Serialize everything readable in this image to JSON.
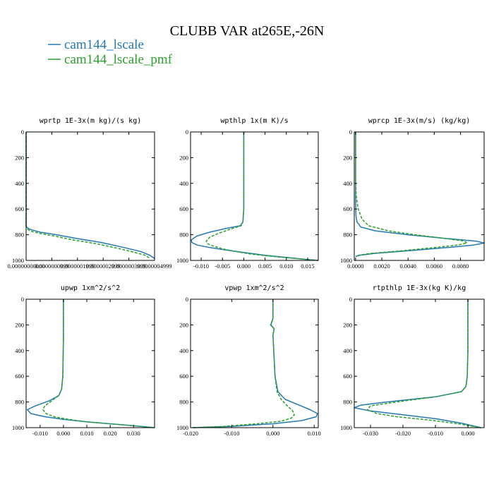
{
  "title": "CLUBB VAR at265E,-26N",
  "legend": [
    {
      "label": "cam144_lscale",
      "color": "#2478b4",
      "dash": false
    },
    {
      "label": "cam144_lscale_pmf",
      "color": "#2ca02c",
      "dash": true
    }
  ],
  "chart_data": [
    {
      "type": "line",
      "title": "wprtp  1E-3x(m kg)/(s kg)",
      "ylim": [
        1000,
        0
      ],
      "xlim": [
        0,
        5.5e-09
      ],
      "yticks": [
        0,
        200,
        400,
        600,
        800,
        1000
      ],
      "xticks": [
        {
          "v": 0,
          "label": "0.00000000000"
        },
        {
          "v": 1.11e-09,
          "label": "0.0000000999"
        },
        {
          "v": 2.22e-09,
          "label": "0.0000001999"
        },
        {
          "v": 3.33e-09,
          "label": "0.0000002999"
        },
        {
          "v": 4.44e-09,
          "label": "0.0000003999"
        },
        {
          "v": 5.55e-09,
          "label": "0.0000004999"
        }
      ],
      "xtick_positions": [
        0,
        1.1e-09,
        2.2e-09,
        3.3e-09,
        4.4e-09,
        5.5e-09
      ],
      "series": [
        {
          "name": "cam144_lscale",
          "x": [
            0,
            0,
            0,
            0,
            0,
            0,
            3e-11,
            8e-11,
            2e-10,
            6e-10,
            1.3e-09,
            2.2e-09,
            3.2e-09,
            4.2e-09,
            4.9e-09,
            5.3e-09,
            5.5e-09
          ],
          "y": [
            0,
            200,
            400,
            600,
            700,
            730,
            740,
            750,
            760,
            780,
            800,
            830,
            860,
            900,
            930,
            960,
            985
          ]
        },
        {
          "name": "cam144_lscale_pmf",
          "x": [
            0,
            0,
            0,
            0,
            0,
            0,
            3e-11,
            8e-11,
            2e-10,
            6e-10,
            1.2e-09,
            2e-09,
            3e-09,
            3.9e-09,
            4.6e-09,
            5.1e-09,
            5.3e-09
          ],
          "y": [
            0,
            200,
            400,
            600,
            700,
            735,
            748,
            760,
            772,
            790,
            810,
            840,
            870,
            905,
            935,
            960,
            985
          ]
        }
      ]
    },
    {
      "type": "line",
      "title": "wpthlp  1x(m K)/s",
      "ylim": [
        1000,
        0
      ],
      "xlim": [
        -0.0125,
        0.0175
      ],
      "yticks": [
        0,
        200,
        400,
        600,
        800,
        1000
      ],
      "xticks": [
        {
          "v": -0.01,
          "label": "-0.010"
        },
        {
          "v": -0.005,
          "label": "-0.005"
        },
        {
          "v": 0,
          "label": "0.000"
        },
        {
          "v": 0.005,
          "label": "0.005"
        },
        {
          "v": 0.01,
          "label": "0.010"
        },
        {
          "v": 0.015,
          "label": "0.015"
        }
      ],
      "series": [
        {
          "name": "cam144_lscale",
          "x": [
            0,
            0,
            0,
            0,
            -0.0002,
            -0.0008,
            -0.004,
            -0.008,
            -0.011,
            -0.0123,
            -0.0122,
            -0.011,
            -0.008,
            -0.004,
            0.0005,
            0.005,
            0.011,
            0.0155,
            0.0175
          ],
          "y": [
            0,
            200,
            400,
            600,
            700,
            730,
            750,
            780,
            810,
            840,
            860,
            880,
            900,
            920,
            940,
            960,
            980,
            995,
            1000
          ]
        },
        {
          "name": "cam144_lscale_pmf",
          "x": [
            0,
            0,
            0,
            0,
            -0.0002,
            -0.0006,
            -0.003,
            -0.006,
            -0.008,
            -0.0088,
            -0.0085,
            -0.007,
            -0.005,
            -0.002,
            0.0015,
            0.0055,
            0.0105,
            0.015,
            0.0175
          ],
          "y": [
            0,
            200,
            400,
            600,
            700,
            730,
            755,
            790,
            820,
            850,
            870,
            890,
            910,
            930,
            950,
            965,
            980,
            993,
            1000
          ]
        }
      ]
    },
    {
      "type": "line",
      "title": "wprcp  1E-3x(m/s) (kg/kg)",
      "ylim": [
        1000,
        0
      ],
      "xlim": [
        -0.0001,
        0.0098
      ],
      "yticks": [
        0,
        200,
        400,
        600,
        800,
        1000
      ],
      "xticks": [
        {
          "v": 0,
          "label": "0.0000"
        },
        {
          "v": 0.002,
          "label": "0.0020"
        },
        {
          "v": 0.004,
          "label": "0.0040"
        },
        {
          "v": 0.006,
          "label": "0.0060"
        },
        {
          "v": 0.008,
          "label": "0.0080"
        }
      ],
      "series": [
        {
          "name": "cam144_lscale",
          "x": [
            0,
            0,
            0,
            0,
            3e-05,
            0.0001,
            0.0004,
            0.0015,
            0.004,
            0.007,
            0.0092,
            0.0098,
            0.009,
            0.007,
            0.004,
            0.0015,
            0.0003,
            0
          ],
          "y": [
            0,
            200,
            400,
            550,
            650,
            700,
            740,
            770,
            800,
            830,
            850,
            865,
            880,
            900,
            925,
            945,
            960,
            970
          ]
        },
        {
          "name": "cam144_lscale_pmf",
          "x": [
            0,
            0,
            0,
            5e-05,
            0.0002,
            0.0005,
            0.001,
            0.0025,
            0.0045,
            0.0065,
            0.0083,
            0.0085,
            0.0078,
            0.006,
            0.0035,
            0.0012,
            0.0002,
            0
          ],
          "y": [
            0,
            200,
            400,
            500,
            600,
            680,
            730,
            770,
            800,
            825,
            850,
            865,
            880,
            900,
            925,
            945,
            960,
            970
          ]
        }
      ]
    },
    {
      "type": "line",
      "title": "upwp  1xm^2/s^2",
      "ylim": [
        1000,
        0
      ],
      "xlim": [
        -0.016,
        0.039
      ],
      "yticks": [
        0,
        200,
        400,
        600,
        800,
        1000
      ],
      "xticks": [
        {
          "v": -0.01,
          "label": "-0.010"
        },
        {
          "v": 0,
          "label": "0.000"
        },
        {
          "v": 0.01,
          "label": "0.010"
        },
        {
          "v": 0.02,
          "label": "0.020"
        },
        {
          "v": 0.03,
          "label": "0.030"
        }
      ],
      "series": [
        {
          "name": "cam144_lscale",
          "x": [
            0,
            0,
            -0.0003,
            -0.0008,
            -0.002,
            -0.006,
            -0.012,
            -0.0155,
            -0.014,
            -0.008,
            0,
            0.01,
            0.02,
            0.03,
            0.036,
            0.039
          ],
          "y": [
            0,
            300,
            600,
            700,
            750,
            790,
            830,
            860,
            890,
            915,
            935,
            955,
            970,
            985,
            995,
            1000
          ]
        },
        {
          "name": "cam144_lscale_pmf",
          "x": [
            0,
            0,
            -0.0003,
            -0.0008,
            -0.002,
            -0.005,
            -0.008,
            -0.0088,
            -0.0075,
            -0.004,
            0.002,
            0.01,
            0.02,
            0.03,
            0.036,
            0.039
          ],
          "y": [
            0,
            300,
            600,
            700,
            750,
            790,
            830,
            860,
            890,
            915,
            935,
            955,
            970,
            985,
            995,
            1000
          ]
        }
      ]
    },
    {
      "type": "line",
      "title": "vpwp  1xm^2/s^2",
      "ylim": [
        1000,
        0
      ],
      "xlim": [
        -0.02,
        0.011
      ],
      "yticks": [
        0,
        200,
        400,
        600,
        800,
        1000
      ],
      "xticks": [
        {
          "v": -0.02,
          "label": "-0.020"
        },
        {
          "v": -0.01,
          "label": "-0.010"
        },
        {
          "v": 0,
          "label": "0.000"
        },
        {
          "v": 0.01,
          "label": "0.010"
        }
      ],
      "series": [
        {
          "name": "cam144_lscale",
          "x": [
            0,
            0,
            -0.0005,
            0.0003,
            0,
            0.0002,
            0.0005,
            0.0012,
            0.003,
            0.006,
            0.009,
            0.0108,
            0.0105,
            0.007,
            0,
            -0.01,
            -0.0195
          ],
          "y": [
            0,
            150,
            200,
            230,
            280,
            400,
            600,
            720,
            780,
            820,
            860,
            890,
            915,
            945,
            970,
            990,
            1000
          ]
        },
        {
          "name": "cam144_lscale_pmf",
          "x": [
            0,
            0,
            -0.0006,
            0.0003,
            0,
            0.0002,
            0.0005,
            0.001,
            0.002,
            0.0035,
            0.0048,
            0.0052,
            0.0045,
            0.002,
            -0.004,
            -0.012,
            -0.0195
          ],
          "y": [
            0,
            150,
            200,
            230,
            280,
            400,
            600,
            720,
            780,
            830,
            870,
            900,
            925,
            950,
            970,
            990,
            1000
          ]
        }
      ]
    },
    {
      "type": "line",
      "title": "rtpthlp  1E-3x(kg K)/kg",
      "ylim": [
        1000,
        0
      ],
      "xlim": [
        -0.035,
        0.005
      ],
      "yticks": [
        0,
        200,
        400,
        600,
        800,
        1000
      ],
      "xticks": [
        {
          "v": -0.03,
          "label": "-0.030"
        },
        {
          "v": -0.02,
          "label": "-0.020"
        },
        {
          "v": -0.01,
          "label": "-0.010"
        },
        {
          "v": 0,
          "label": "0.000"
        }
      ],
      "series": [
        {
          "name": "cam144_lscale",
          "x": [
            0,
            0,
            -0.0002,
            -0.0006,
            -0.002,
            -0.01,
            -0.025,
            -0.033,
            -0.035,
            -0.03,
            -0.02,
            -0.01,
            -0.002,
            0.004
          ],
          "y": [
            0,
            400,
            600,
            680,
            720,
            760,
            800,
            825,
            845,
            870,
            900,
            930,
            965,
            1000
          ]
        },
        {
          "name": "cam144_lscale_pmf",
          "x": [
            0,
            0,
            -0.0002,
            -0.0006,
            -0.002,
            -0.01,
            -0.022,
            -0.03,
            -0.031,
            -0.028,
            -0.022,
            -0.012,
            -0.003,
            0.004
          ],
          "y": [
            0,
            400,
            600,
            680,
            720,
            760,
            800,
            830,
            860,
            890,
            915,
            940,
            970,
            1000
          ]
        }
      ]
    }
  ]
}
